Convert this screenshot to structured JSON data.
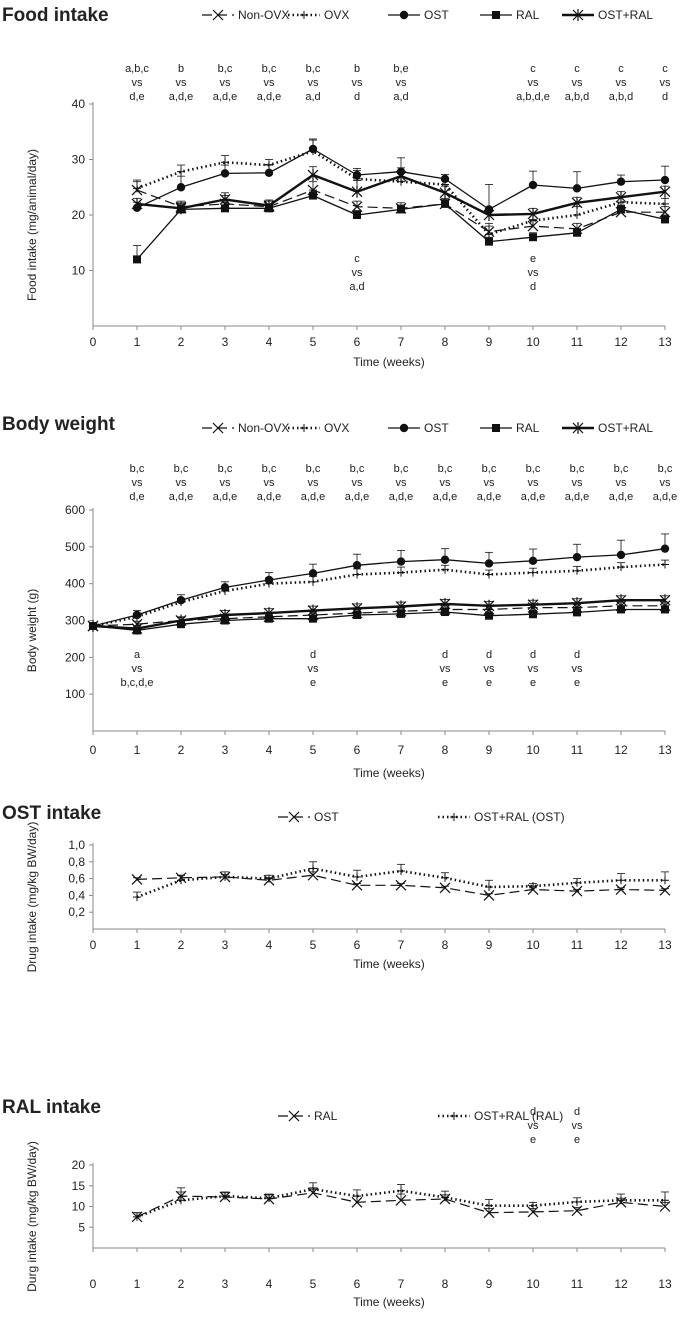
{
  "chart_data": [
    {
      "type": "line",
      "title": "Food intake",
      "xlabel": "Time (weeks)",
      "ylabel": "Food intake (mg/animal/day)",
      "x": [
        1,
        2,
        3,
        4,
        5,
        6,
        7,
        8,
        9,
        10,
        11,
        12,
        13
      ],
      "xlim": [
        0,
        13
      ],
      "ylim": [
        0,
        40
      ],
      "yticks": [
        10,
        20,
        30,
        40
      ],
      "ytick_labels": [
        "10",
        "20",
        "30",
        "40"
      ],
      "xticks": [
        0,
        1,
        2,
        3,
        4,
        5,
        6,
        7,
        8,
        9,
        10,
        11,
        12,
        13
      ],
      "xtick_labels": [
        "0",
        "1",
        "2",
        "3",
        "4",
        "5",
        "6",
        "7",
        "8",
        "9",
        "10",
        "11",
        "12",
        "13"
      ],
      "series": [
        {
          "name": "Non-OVX",
          "style": "longdash",
          "marker": "x",
          "values": [
            24.5,
            21.5,
            22,
            21.5,
            24.5,
            21.5,
            21.2,
            22,
            17,
            18,
            17.5,
            20.5,
            20.5
          ],
          "errors": [
            1.5,
            1.0,
            1.5,
            1.0,
            1.5,
            1.0,
            1.0,
            1.0,
            1.5,
            1.2,
            1.0,
            1.0,
            1.0
          ]
        },
        {
          "name": "OVX",
          "style": "dotted",
          "marker": "plus",
          "values": [
            24.8,
            27.8,
            29.5,
            29,
            31.5,
            26.5,
            26,
            25.5,
            16.5,
            19,
            20,
            22.3,
            22
          ],
          "errors": [
            1.5,
            1.2,
            1.2,
            1.0,
            2.0,
            1.5,
            1.5,
            1.0,
            1.5,
            1.2,
            1.5,
            1.0,
            1.0
          ]
        },
        {
          "name": "OST",
          "style": "solid",
          "marker": "circle",
          "values": [
            21.3,
            25,
            27.5,
            27.6,
            31.9,
            27.2,
            27.8,
            26.5,
            21,
            25.4,
            24.8,
            26,
            26.3
          ],
          "errors": [
            1.0,
            2.0,
            1.5,
            1.5,
            1.8,
            1.2,
            2.5,
            0.8,
            4.5,
            2.5,
            3.0,
            1.2,
            2.5
          ]
        },
        {
          "name": "RAL",
          "style": "solid",
          "marker": "square",
          "values": [
            12,
            21,
            21.2,
            21.2,
            23.5,
            20,
            21,
            22,
            15.2,
            16,
            16.8,
            21,
            19.2
          ],
          "errors": [
            2.5,
            1.0,
            1.0,
            0.8,
            1.0,
            0.8,
            0.8,
            0.8,
            0.8,
            0.8,
            0.8,
            0.8,
            0.8
          ]
        },
        {
          "name": "OST+RAL",
          "style": "bold",
          "marker": "asterisk",
          "values": [
            22,
            21.2,
            22.8,
            21.7,
            27.2,
            24.2,
            27,
            24,
            20,
            20.2,
            22.2,
            23.2,
            24.2
          ],
          "errors": [
            1.0,
            1.0,
            1.2,
            1.0,
            1.5,
            2.0,
            1.5,
            1.2,
            1.0,
            1.0,
            1.0,
            1.0,
            1.0
          ]
        }
      ],
      "annotations_top": [
        {
          "x": 1,
          "lines": [
            "a,b,c",
            "vs",
            "d,e"
          ]
        },
        {
          "x": 2,
          "lines": [
            "b",
            "vs",
            "a,d,e"
          ]
        },
        {
          "x": 3,
          "lines": [
            "b,c",
            "vs",
            "a,d,e"
          ]
        },
        {
          "x": 4,
          "lines": [
            "b,c",
            "vs",
            "a,d,e"
          ]
        },
        {
          "x": 5,
          "lines": [
            "b,c",
            "vs",
            "a,d"
          ]
        },
        {
          "x": 6,
          "lines": [
            "b",
            "vs",
            "d"
          ]
        },
        {
          "x": 7,
          "lines": [
            "b,e",
            "vs",
            "a,d"
          ]
        },
        {
          "x": 10,
          "lines": [
            "c",
            "vs",
            "a,b,d,e"
          ]
        },
        {
          "x": 11,
          "lines": [
            "c",
            "vs",
            "a,b,d"
          ]
        },
        {
          "x": 12,
          "lines": [
            "c",
            "vs",
            "a,b,d"
          ]
        },
        {
          "x": 13,
          "lines": [
            "c",
            "vs",
            "d"
          ]
        }
      ],
      "annotations_bottom": [
        {
          "x": 6,
          "lines": [
            "c",
            "vs",
            "a,d"
          ]
        },
        {
          "x": 10,
          "lines": [
            "e",
            "vs",
            "d"
          ]
        }
      ]
    },
    {
      "type": "line",
      "title": "Body weight",
      "xlabel": "Time (weeks)",
      "ylabel": "Body weight (g)",
      "x": [
        0,
        1,
        2,
        3,
        4,
        5,
        6,
        7,
        8,
        9,
        10,
        11,
        12,
        13
      ],
      "xlim": [
        0,
        13
      ],
      "ylim": [
        0,
        600
      ],
      "yticks": [
        100,
        200,
        300,
        400,
        500,
        600
      ],
      "ytick_labels": [
        "100",
        "200",
        "300",
        "400",
        "500",
        "600"
      ],
      "xticks": [
        0,
        1,
        2,
        3,
        4,
        5,
        6,
        7,
        8,
        9,
        10,
        11,
        12,
        13
      ],
      "xtick_labels": [
        "0",
        "1",
        "2",
        "3",
        "4",
        "5",
        "6",
        "7",
        "8",
        "9",
        "10",
        "11",
        "12",
        "13"
      ],
      "series": [
        {
          "name": "Non-OVX",
          "style": "longdash",
          "marker": "x",
          "values": [
            285,
            290,
            300,
            305,
            310,
            315,
            320,
            325,
            330,
            330,
            335,
            335,
            340,
            340
          ],
          "errors": [
            8,
            8,
            8,
            8,
            8,
            8,
            10,
            10,
            10,
            10,
            10,
            10,
            10,
            10
          ]
        },
        {
          "name": "OVX",
          "style": "dotted",
          "marker": "plus",
          "values": [
            285,
            310,
            350,
            380,
            400,
            405,
            425,
            430,
            438,
            425,
            430,
            435,
            445,
            452
          ],
          "errors": [
            8,
            10,
            10,
            12,
            15,
            15,
            15,
            15,
            12,
            12,
            12,
            12,
            12,
            12
          ]
        },
        {
          "name": "OST",
          "style": "solid",
          "marker": "circle",
          "values": [
            285,
            315,
            355,
            390,
            410,
            428,
            450,
            460,
            465,
            455,
            462,
            472,
            478,
            495
          ],
          "errors": [
            8,
            12,
            15,
            15,
            20,
            25,
            30,
            30,
            30,
            30,
            32,
            35,
            40,
            40
          ]
        },
        {
          "name": "RAL",
          "style": "solid",
          "marker": "square",
          "values": [
            285,
            273,
            290,
            300,
            305,
            305,
            315,
            318,
            323,
            313,
            317,
            322,
            330,
            330
          ],
          "errors": [
            8,
            8,
            8,
            8,
            8,
            10,
            10,
            10,
            10,
            10,
            10,
            10,
            10,
            10
          ]
        },
        {
          "name": "OST+RAL",
          "style": "bold",
          "marker": "asterisk",
          "values": [
            285,
            278,
            300,
            315,
            320,
            327,
            333,
            338,
            345,
            340,
            343,
            347,
            355,
            355
          ],
          "errors": [
            8,
            8,
            10,
            12,
            12,
            12,
            12,
            12,
            12,
            12,
            12,
            12,
            12,
            12
          ]
        }
      ],
      "annotations_top": [
        {
          "x": 1,
          "lines": [
            "b,c",
            "vs",
            "d,e"
          ]
        },
        {
          "x": 2,
          "lines": [
            "b,c",
            "vs",
            "a,d,e"
          ]
        },
        {
          "x": 3,
          "lines": [
            "b,c",
            "vs",
            "a,d,e"
          ]
        },
        {
          "x": 4,
          "lines": [
            "b,c",
            "vs",
            "a,d,e"
          ]
        },
        {
          "x": 5,
          "lines": [
            "b,c",
            "vs",
            "a,d,e"
          ]
        },
        {
          "x": 6,
          "lines": [
            "b,c",
            "vs",
            "a,d,e"
          ]
        },
        {
          "x": 7,
          "lines": [
            "b,c",
            "vs",
            "a,d,e"
          ]
        },
        {
          "x": 8,
          "lines": [
            "b,c",
            "vs",
            "a,d,e"
          ]
        },
        {
          "x": 9,
          "lines": [
            "b,c",
            "vs",
            "a,d,e"
          ]
        },
        {
          "x": 10,
          "lines": [
            "b,c",
            "vs",
            "a,d,e"
          ]
        },
        {
          "x": 11,
          "lines": [
            "b,c",
            "vs",
            "a,d,e"
          ]
        },
        {
          "x": 12,
          "lines": [
            "b,c",
            "vs",
            "a,d,e"
          ]
        },
        {
          "x": 13,
          "lines": [
            "b,c",
            "vs",
            "a,d,e"
          ]
        }
      ],
      "annotations_bottom": [
        {
          "x": 1,
          "lines": [
            "a",
            "vs",
            "b,c,d,e"
          ]
        },
        {
          "x": 5,
          "lines": [
            "d",
            "vs",
            "e"
          ]
        },
        {
          "x": 8,
          "lines": [
            "d",
            "vs",
            "e"
          ]
        },
        {
          "x": 9,
          "lines": [
            "d",
            "vs",
            "e"
          ]
        },
        {
          "x": 10,
          "lines": [
            "d",
            "vs",
            "e"
          ]
        },
        {
          "x": 11,
          "lines": [
            "d",
            "vs",
            "e"
          ]
        }
      ]
    },
    {
      "type": "line",
      "title": "OST intake",
      "xlabel": "Time (weeks)",
      "ylabel": "Drug intake (mg/kg BW/day)",
      "x": [
        1,
        2,
        3,
        4,
        5,
        6,
        7,
        8,
        9,
        10,
        11,
        12,
        13
      ],
      "xlim": [
        0,
        13
      ],
      "ylim": [
        0,
        1.0
      ],
      "yticks": [
        0.2,
        0.4,
        0.6,
        0.8,
        1.0
      ],
      "ytick_labels": [
        "0,2",
        "0,4",
        "0,6",
        "0,8",
        "1,0"
      ],
      "xticks": [
        0,
        1,
        2,
        3,
        4,
        5,
        6,
        7,
        8,
        9,
        10,
        11,
        12,
        13
      ],
      "xtick_labels": [
        "0",
        "1",
        "2",
        "3",
        "4",
        "5",
        "6",
        "7",
        "8",
        "9",
        "10",
        "11",
        "12",
        "13"
      ],
      "series": [
        {
          "name": "OST",
          "style": "longdash",
          "marker": "x",
          "values": [
            0.59,
            0.61,
            0.62,
            0.58,
            0.64,
            0.52,
            0.52,
            0.49,
            0.4,
            0.47,
            0.45,
            0.47,
            0.46
          ],
          "errors": [
            0.02,
            0.03,
            0.03,
            0.03,
            0.04,
            0.02,
            0.02,
            0.02,
            0.02,
            0.02,
            0.02,
            0.02,
            0.02
          ]
        },
        {
          "name": "OST+RAL (OST)",
          "style": "dotted",
          "marker": "plus",
          "values": [
            0.38,
            0.58,
            0.62,
            0.6,
            0.72,
            0.62,
            0.69,
            0.61,
            0.5,
            0.51,
            0.55,
            0.58,
            0.58
          ],
          "errors": [
            0.06,
            0.06,
            0.06,
            0.04,
            0.08,
            0.08,
            0.08,
            0.06,
            0.08,
            0.03,
            0.05,
            0.08,
            0.1
          ]
        }
      ],
      "annotations_top": [],
      "annotations_bottom": []
    },
    {
      "type": "line",
      "title": "RAL intake",
      "xlabel": "Time (weeks)",
      "ylabel": "Durg intake (mg/kg BW/day)",
      "x": [
        1,
        2,
        3,
        4,
        5,
        6,
        7,
        8,
        9,
        10,
        11,
        12,
        13
      ],
      "xlim": [
        0,
        13
      ],
      "ylim": [
        0,
        20
      ],
      "yticks": [
        5,
        10,
        15,
        20
      ],
      "ytick_labels": [
        "5",
        "10",
        "15",
        "20"
      ],
      "xticks": [
        0,
        1,
        2,
        3,
        4,
        5,
        6,
        7,
        8,
        9,
        10,
        11,
        12,
        13
      ],
      "xtick_labels": [
        "0",
        "1",
        "2",
        "3",
        "4",
        "5",
        "6",
        "7",
        "8",
        "9",
        "10",
        "11",
        "12",
        "13"
      ],
      "series": [
        {
          "name": "RAL",
          "style": "longdash",
          "marker": "x",
          "values": [
            7.5,
            12.5,
            12.3,
            11.8,
            13.3,
            11,
            11.5,
            11.8,
            8.5,
            8.7,
            9,
            11,
            10
          ],
          "errors": [
            1.0,
            2.0,
            1.0,
            1.0,
            1.2,
            1.5,
            1.5,
            1.0,
            1.0,
            0.8,
            0.8,
            1.0,
            1.0
          ]
        },
        {
          "name": "OST+RAL (RAL)",
          "style": "dotted",
          "marker": "plus",
          "values": [
            7.5,
            11.5,
            12.5,
            12,
            14.2,
            12.5,
            13.8,
            12.2,
            10.2,
            10.2,
            11.1,
            11.5,
            11.5
          ],
          "errors": [
            1.0,
            2.0,
            1.0,
            1.0,
            1.5,
            1.5,
            1.5,
            1.5,
            1.5,
            0.8,
            1.0,
            1.5,
            2.0
          ]
        }
      ],
      "annotations_top": [
        {
          "x": 10,
          "lines": [
            "d",
            "vs",
            "e"
          ]
        },
        {
          "x": 11,
          "lines": [
            "d",
            "vs",
            "e"
          ]
        }
      ],
      "annotations_bottom": []
    }
  ]
}
